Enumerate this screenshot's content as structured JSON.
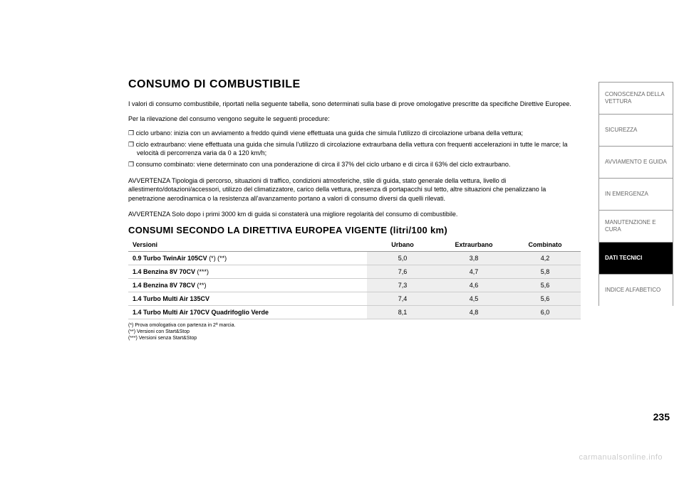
{
  "heading1": "CONSUMO DI COMBUSTIBILE",
  "intro1": "I valori di consumo combustibile, riportati nella seguente tabella, sono determinati sulla base di prove omologative prescritte da specifiche Direttive Europee.",
  "intro2": "Per la rilevazione del consumo vengono seguite le seguenti procedure:",
  "bullets": {
    "b1": "ciclo urbano: inizia con un avviamento a freddo quindi viene effettuata una guida che simula l'utilizzo di circolazione urbana della vettura;",
    "b2": "ciclo extraurbano: viene effettuata una guida che simula l'utilizzo di circolazione extraurbana della vettura con frequenti accelerazioni in tutte le marce; la velocità di percorrenza varia da 0 a 120 km/h;",
    "b3": "consumo combinato: viene determinato con una ponderazione di circa il 37% del ciclo urbano e di circa il 63% del ciclo extraurbano."
  },
  "warning1": "AVVERTENZA Tipologia di percorso, situazioni di traffico, condizioni atmosferiche, stile di guida, stato generale della vettura, livello di allestimento/dotazioni/accessori, utilizzo del climatizzatore, carico della vettura, presenza di portapacchi sul tetto, altre situazioni che penalizzano la penetrazione aerodinamica o la resistenza all'avanzamento portano a valori di consumo diversi da quelli rilevati.",
  "warning2": "AVVERTENZA Solo dopo i primi 3000 km di guida si constaterà una migliore regolarità del consumo di combustibile.",
  "heading2": "CONSUMI SECONDO LA DIRETTIVA EUROPEA VIGENTE (litri/100 km)",
  "table": {
    "headers": {
      "c0": "Versioni",
      "c1": "Urbano",
      "c2": "Extraurbano",
      "c3": "Combinato"
    },
    "rows": {
      "r0": {
        "label": "0.9 Turbo TwinAir 105CV",
        "suffix": " (*) (**)",
        "c1": "5,0",
        "c2": "3,8",
        "c3": "4,2"
      },
      "r1": {
        "label": "1.4 Benzina 8V 70CV",
        "suffix": " (***)",
        "c1": "7,6",
        "c2": "4,7",
        "c3": "5,8"
      },
      "r2": {
        "label": "1.4 Benzina 8V 78CV",
        "suffix": " (**)",
        "c1": "7,3",
        "c2": "4,6",
        "c3": "5,6"
      },
      "r3": {
        "label": "1.4 Turbo Multi Air 135CV",
        "suffix": "",
        "c1": "7,4",
        "c2": "4,5",
        "c3": "5,6"
      },
      "r4": {
        "label": "1.4 Turbo Multi Air 170CV Quadrifoglio Verde",
        "suffix": "",
        "c1": "8,1",
        "c2": "4,8",
        "c3": "6,0"
      }
    }
  },
  "footnotes": {
    "f1": "(*) Prova omologativa con partenza in 2ª marcia.",
    "f2": "(**) Versioni con Start&Stop",
    "f3": "(***) Versioni senza Start&Stop"
  },
  "sidebar": {
    "t0": "CONOSCENZA DELLA VETTURA",
    "t1": "SICUREZZA",
    "t2": "AVVIAMENTO E GUIDA",
    "t3": "IN EMERGENZA",
    "t4": "MANUTENZIONE E CURA",
    "t5": "DATI TECNICI",
    "t6": "INDICE ALFABETICO"
  },
  "pageNumber": "235",
  "watermark": "carmanualsonline.info"
}
